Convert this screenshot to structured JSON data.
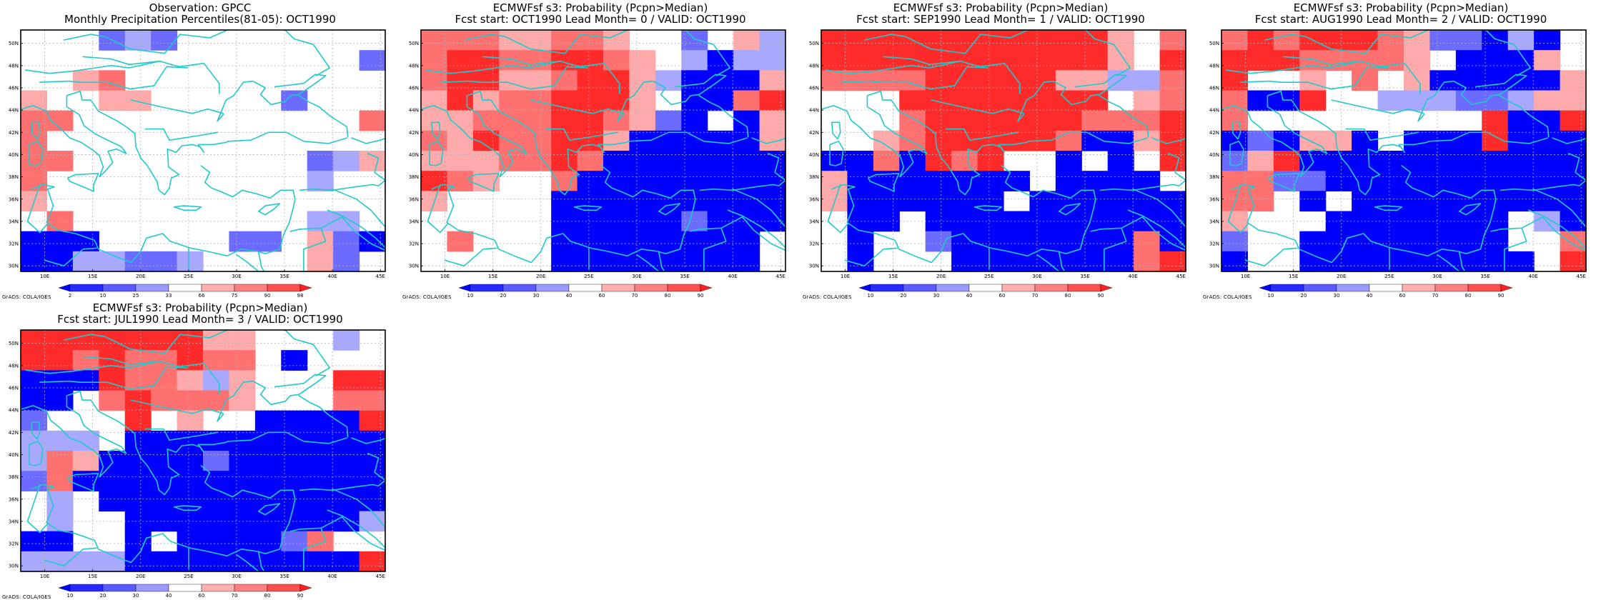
{
  "panels": [
    {
      "id": "obs",
      "title_line1": "Observation: GPCC",
      "title_line2": "Monthly Precipitation Percentiles(81-05): OCT1990",
      "legend": "obs",
      "credit": "GrADS: COLA/IGES",
      "grid": [
        "WWWMLMWWWWWWWW",
        "WWWWWWWWWWWWWM",
        "WWPrWWWWWWWWWW",
        "PWWPPWWWWWMWWW",
        "rrWWWWWWWWWWWr",
        "rWWWWWWWWWWWWW",
        "rrWWWWWWWWWMLP",
        "rWWWWWWWWWWLWW",
        "PWWWWWWWWWWWWW",
        "WrWWWWWWWWWLLW",
        "BBBWWWWWMMWPMB",
        "BBLLMMLWWWWPMW"
      ]
    },
    {
      "id": "lead0",
      "title_line1": "ECMWFsf s3: Probability (Pcpn>Median)",
      "title_line2": "Fcst start: OCT1990   Lead Month= 0 / VALID: OCT1990",
      "legend": "prob",
      "credit": "GrADS: COLA/IGES",
      "grid": [
        "rrrPPrrPWWMWPL",
        "rRRrrRRrPWLBLL",
        "rRRPPrRRPLBBBP",
        "PRPrrRRRPWBBrR",
        "PPrrrRRrPMBWBP",
        "rPRrrRRPBBBBBP",
        "PPPrrRrBBBBBBB",
        "RrPWWrBBBBBBBB",
        "PWWWWBBBBBBBBB",
        "WWWWWBBBBBMBBB",
        "WrWWWBBBBBBBBW",
        "WWWWWBBBBBBBBW"
      ]
    },
    {
      "id": "lead1",
      "title_line1": "ECMWFsf s3: Probability (Pcpn>Median)",
      "title_line2": "Fcst start: SEP1990   Lead Month= 1 / VALID: OCT1990",
      "legend": "prob",
      "credit": "GrADS: COLA/IGES",
      "grid": [
        "RRRRRRRRRRRPWr",
        "RRRRRRRRRRRPWR",
        "rrrrRRRRRPPLLr",
        "WWWRRRRRRRRWPr",
        "WWWrRRRRRRrrrR",
        "WWPrRRRRRrBBPR",
        "BBrBRrRWWBWBWR",
        "PBBBBBBBWBBBBW",
        "PBBBBBBWBBBBBB",
        "WBBWBBBBBBBBBB",
        "WBWWMBBBBBBBrB",
        "WBWWWBBBBBBBrR"
      ]
    },
    {
      "id": "lead2",
      "title_line1": "ECMWFsf s3: Probability (Pcpn>Median)",
      "title_line2": "Fcst start: AUG1990   Lead Month= 2 / VALID: OCT1990",
      "legend": "prob",
      "credit": "GrADS: COLA/IGES",
      "grid": [
        "rRrRRRrPMMBLBW",
        "RRRrrrrPWBBBPW",
        "RWWPWrWPBBBBBP",
        "rBBRWWLLLMMLPP",
        "rWWWWWWWWWRBBR",
        "BMBPPBWBBBRBBB",
        "MPRBBBBBBBBBBB",
        "rrMMBBBBBBBBBB",
        "rrWBWBBBBBBBBB",
        "PWWWBBBBBBBWLB",
        "MWWBBBBBBBBWWr",
        "BWWBBBBBBBBBWR"
      ]
    },
    {
      "id": "lead3",
      "title_line1": "ECMWFsf s3: Probability (Pcpn>Median)",
      "title_line2": "Fcst start: JUL1990   Lead Month= 3 / VALID: OCT1990",
      "legend": "prob",
      "credit": "GrADS: COLA/IGES",
      "grid": [
        "RRRRRRRPPWWWLW",
        "RRrRrrRrrWBWWW",
        "BBBRrrPLPWWWRR",
        "BBWrRrrrPWWWrr",
        "MWWWRWPWWBBBBR",
        "LLLWBBBBBBBBBB",
        "LrPBBBBMBBBBBB",
        "MrBBBBBBBBBBBB",
        "WLWBBBBBBBBBBB",
        "WLWWBBBBBBBBBL",
        "BBWWBWBBBBMrWW",
        "LLLLBBBBBBBBBR"
      ]
    }
  ],
  "color_codes": {
    "W": "#ffffff",
    "B": "#0000ff",
    "M": "#6b6bff",
    "L": "#a8a8ff",
    "P": "#ffaaaa",
    "r": "#ff7070",
    "R": "#ff2a2a"
  },
  "legends": {
    "obs": {
      "labels": [
        "2",
        "10",
        "25",
        "33",
        "66",
        "75",
        "90",
        "98"
      ],
      "colors": [
        "#0000ff",
        "#2a2aff",
        "#5a5aff",
        "#9a9aff",
        "#ffffff",
        "#ffb0b0",
        "#ff8080",
        "#ff5050",
        "#ff2020"
      ]
    },
    "prob": {
      "labels": [
        "10",
        "20",
        "30",
        "40",
        "60",
        "70",
        "80",
        "90"
      ],
      "colors": [
        "#0000ff",
        "#2a2aff",
        "#5a5aff",
        "#9a9aff",
        "#ffffff",
        "#ffb0b0",
        "#ff8080",
        "#ff5050",
        "#ff2020"
      ]
    }
  },
  "axes": {
    "lon_labels": [
      "10E",
      "15E",
      "20E",
      "25E",
      "30E",
      "35E",
      "40E",
      "45E"
    ],
    "lon_values": [
      10,
      15,
      20,
      25,
      30,
      35,
      40,
      45
    ],
    "lat_labels": [
      "30N",
      "32N",
      "34N",
      "36N",
      "38N",
      "40N",
      "42N",
      "44N",
      "46N",
      "48N",
      "50N"
    ],
    "lat_values": [
      30,
      32,
      34,
      36,
      38,
      40,
      42,
      44,
      46,
      48,
      50
    ],
    "lon_range": [
      7.5,
      45.5
    ],
    "lat_range": [
      29.5,
      51.2
    ]
  },
  "coastline_color": "#21c9c9"
}
